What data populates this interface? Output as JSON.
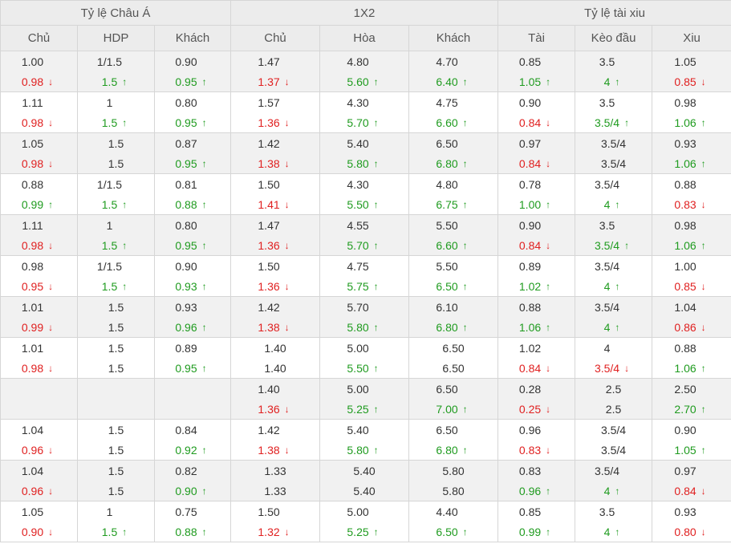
{
  "groups": [
    {
      "label": "Tỷ lệ Châu Á"
    },
    {
      "label": "1X2"
    },
    {
      "label": "Tỷ lệ tài xiu"
    }
  ],
  "columns": [
    "Chủ",
    "HDP",
    "Khách",
    "Chủ",
    "Hòa",
    "Khách",
    "Tài",
    "Kèo đầu",
    "Xiu"
  ],
  "arrows": {
    "up": "↑",
    "down": "↓"
  },
  "colors": {
    "up": "#1f9b1f",
    "down": "#e02020",
    "header_bg": "#ececec",
    "row_alt_bg": "#f1f1f1"
  },
  "rows": [
    {
      "cells": [
        {
          "top": "1.00",
          "bottom": "0.98",
          "dir": "down"
        },
        {
          "top": "1/1.5",
          "bottom": "1.5",
          "dir": "up"
        },
        {
          "top": "0.90",
          "bottom": "0.95",
          "dir": "up"
        },
        {
          "top": "1.47",
          "bottom": "1.37",
          "dir": "down"
        },
        {
          "top": "4.80",
          "bottom": "5.60",
          "dir": "up"
        },
        {
          "top": "4.70",
          "bottom": "6.40",
          "dir": "up"
        },
        {
          "top": "0.85",
          "bottom": "1.05",
          "dir": "up"
        },
        {
          "top": "3.5",
          "bottom": "4",
          "dir": "up"
        },
        {
          "top": "1.05",
          "bottom": "0.85",
          "dir": "down"
        }
      ]
    },
    {
      "cells": [
        {
          "top": "1.11",
          "bottom": "0.98",
          "dir": "down"
        },
        {
          "top": "1",
          "bottom": "1.5",
          "dir": "up"
        },
        {
          "top": "0.80",
          "bottom": "0.95",
          "dir": "up"
        },
        {
          "top": "1.57",
          "bottom": "1.36",
          "dir": "down"
        },
        {
          "top": "4.30",
          "bottom": "5.70",
          "dir": "up"
        },
        {
          "top": "4.75",
          "bottom": "6.60",
          "dir": "up"
        },
        {
          "top": "0.90",
          "bottom": "0.84",
          "dir": "down"
        },
        {
          "top": "3.5",
          "bottom": "3.5/4",
          "dir": "up"
        },
        {
          "top": "0.98",
          "bottom": "1.06",
          "dir": "up"
        }
      ]
    },
    {
      "cells": [
        {
          "top": "1.05",
          "bottom": "0.98",
          "dir": "down"
        },
        {
          "top": "1.5",
          "bottom": "1.5",
          "dir": ""
        },
        {
          "top": "0.87",
          "bottom": "0.95",
          "dir": "up"
        },
        {
          "top": "1.42",
          "bottom": "1.38",
          "dir": "down"
        },
        {
          "top": "5.40",
          "bottom": "5.80",
          "dir": "up"
        },
        {
          "top": "6.50",
          "bottom": "6.80",
          "dir": "up"
        },
        {
          "top": "0.97",
          "bottom": "0.84",
          "dir": "down"
        },
        {
          "top": "3.5/4",
          "bottom": "3.5/4",
          "dir": ""
        },
        {
          "top": "0.93",
          "bottom": "1.06",
          "dir": "up"
        }
      ]
    },
    {
      "cells": [
        {
          "top": "0.88",
          "bottom": "0.99",
          "dir": "up"
        },
        {
          "top": "1/1.5",
          "bottom": "1.5",
          "dir": "up"
        },
        {
          "top": "0.81",
          "bottom": "0.88",
          "dir": "up"
        },
        {
          "top": "1.50",
          "bottom": "1.41",
          "dir": "down"
        },
        {
          "top": "4.30",
          "bottom": "5.50",
          "dir": "up"
        },
        {
          "top": "4.80",
          "bottom": "6.75",
          "dir": "up"
        },
        {
          "top": "0.78",
          "bottom": "1.00",
          "dir": "up"
        },
        {
          "top": "3.5/4",
          "bottom": "4",
          "dir": "up"
        },
        {
          "top": "0.88",
          "bottom": "0.83",
          "dir": "down"
        }
      ]
    },
    {
      "cells": [
        {
          "top": "1.11",
          "bottom": "0.98",
          "dir": "down"
        },
        {
          "top": "1",
          "bottom": "1.5",
          "dir": "up"
        },
        {
          "top": "0.80",
          "bottom": "0.95",
          "dir": "up"
        },
        {
          "top": "1.47",
          "bottom": "1.36",
          "dir": "down"
        },
        {
          "top": "4.55",
          "bottom": "5.70",
          "dir": "up"
        },
        {
          "top": "5.50",
          "bottom": "6.60",
          "dir": "up"
        },
        {
          "top": "0.90",
          "bottom": "0.84",
          "dir": "down"
        },
        {
          "top": "3.5",
          "bottom": "3.5/4",
          "dir": "up"
        },
        {
          "top": "0.98",
          "bottom": "1.06",
          "dir": "up"
        }
      ]
    },
    {
      "cells": [
        {
          "top": "0.98",
          "bottom": "0.95",
          "dir": "down"
        },
        {
          "top": "1/1.5",
          "bottom": "1.5",
          "dir": "up"
        },
        {
          "top": "0.90",
          "bottom": "0.93",
          "dir": "up"
        },
        {
          "top": "1.50",
          "bottom": "1.36",
          "dir": "down"
        },
        {
          "top": "4.75",
          "bottom": "5.75",
          "dir": "up"
        },
        {
          "top": "5.50",
          "bottom": "6.50",
          "dir": "up"
        },
        {
          "top": "0.89",
          "bottom": "1.02",
          "dir": "up"
        },
        {
          "top": "3.5/4",
          "bottom": "4",
          "dir": "up"
        },
        {
          "top": "1.00",
          "bottom": "0.85",
          "dir": "down"
        }
      ]
    },
    {
      "cells": [
        {
          "top": "1.01",
          "bottom": "0.99",
          "dir": "down"
        },
        {
          "top": "1.5",
          "bottom": "1.5",
          "dir": ""
        },
        {
          "top": "0.93",
          "bottom": "0.96",
          "dir": "up"
        },
        {
          "top": "1.42",
          "bottom": "1.38",
          "dir": "down"
        },
        {
          "top": "5.70",
          "bottom": "5.80",
          "dir": "up"
        },
        {
          "top": "6.10",
          "bottom": "6.80",
          "dir": "up"
        },
        {
          "top": "0.88",
          "bottom": "1.06",
          "dir": "up"
        },
        {
          "top": "3.5/4",
          "bottom": "4",
          "dir": "up"
        },
        {
          "top": "1.04",
          "bottom": "0.86",
          "dir": "down"
        }
      ]
    },
    {
      "cells": [
        {
          "top": "1.01",
          "bottom": "0.98",
          "dir": "down"
        },
        {
          "top": "1.5",
          "bottom": "1.5",
          "dir": ""
        },
        {
          "top": "0.89",
          "bottom": "0.95",
          "dir": "up"
        },
        {
          "top": "1.40",
          "bottom": "1.40",
          "dir": ""
        },
        {
          "top": "5.00",
          "bottom": "5.50",
          "dir": "up"
        },
        {
          "top": "6.50",
          "bottom": "6.50",
          "dir": ""
        },
        {
          "top": "1.02",
          "bottom": "0.84",
          "dir": "down"
        },
        {
          "top": "4",
          "bottom": "3.5/4",
          "dir": "down"
        },
        {
          "top": "0.88",
          "bottom": "1.06",
          "dir": "up"
        }
      ]
    },
    {
      "cells": [
        {
          "top": "",
          "bottom": "",
          "dir": ""
        },
        {
          "top": "",
          "bottom": "",
          "dir": ""
        },
        {
          "top": "",
          "bottom": "",
          "dir": ""
        },
        {
          "top": "1.40",
          "bottom": "1.36",
          "dir": "down"
        },
        {
          "top": "5.00",
          "bottom": "5.25",
          "dir": "up"
        },
        {
          "top": "6.50",
          "bottom": "7.00",
          "dir": "up"
        },
        {
          "top": "0.28",
          "bottom": "0.25",
          "dir": "down"
        },
        {
          "top": "2.5",
          "bottom": "2.5",
          "dir": ""
        },
        {
          "top": "2.50",
          "bottom": "2.70",
          "dir": "up"
        }
      ]
    },
    {
      "cells": [
        {
          "top": "1.04",
          "bottom": "0.96",
          "dir": "down"
        },
        {
          "top": "1.5",
          "bottom": "1.5",
          "dir": ""
        },
        {
          "top": "0.84",
          "bottom": "0.92",
          "dir": "up"
        },
        {
          "top": "1.42",
          "bottom": "1.38",
          "dir": "down"
        },
        {
          "top": "5.40",
          "bottom": "5.80",
          "dir": "up"
        },
        {
          "top": "6.50",
          "bottom": "6.80",
          "dir": "up"
        },
        {
          "top": "0.96",
          "bottom": "0.83",
          "dir": "down"
        },
        {
          "top": "3.5/4",
          "bottom": "3.5/4",
          "dir": ""
        },
        {
          "top": "0.90",
          "bottom": "1.05",
          "dir": "up"
        }
      ]
    },
    {
      "cells": [
        {
          "top": "1.04",
          "bottom": "0.96",
          "dir": "down"
        },
        {
          "top": "1.5",
          "bottom": "1.5",
          "dir": ""
        },
        {
          "top": "0.82",
          "bottom": "0.90",
          "dir": "up"
        },
        {
          "top": "1.33",
          "bottom": "1.33",
          "dir": ""
        },
        {
          "top": "5.40",
          "bottom": "5.40",
          "dir": ""
        },
        {
          "top": "5.80",
          "bottom": "5.80",
          "dir": ""
        },
        {
          "top": "0.83",
          "bottom": "0.96",
          "dir": "up"
        },
        {
          "top": "3.5/4",
          "bottom": "4",
          "dir": "up"
        },
        {
          "top": "0.97",
          "bottom": "0.84",
          "dir": "down"
        }
      ]
    },
    {
      "cells": [
        {
          "top": "1.05",
          "bottom": "0.90",
          "dir": "down"
        },
        {
          "top": "1",
          "bottom": "1.5",
          "dir": "up"
        },
        {
          "top": "0.75",
          "bottom": "0.88",
          "dir": "up"
        },
        {
          "top": "1.50",
          "bottom": "1.32",
          "dir": "down"
        },
        {
          "top": "5.00",
          "bottom": "5.25",
          "dir": "up"
        },
        {
          "top": "4.40",
          "bottom": "6.50",
          "dir": "up"
        },
        {
          "top": "0.85",
          "bottom": "0.99",
          "dir": "up"
        },
        {
          "top": "3.5",
          "bottom": "4",
          "dir": "up"
        },
        {
          "top": "0.93",
          "bottom": "0.80",
          "dir": "down"
        }
      ]
    }
  ]
}
